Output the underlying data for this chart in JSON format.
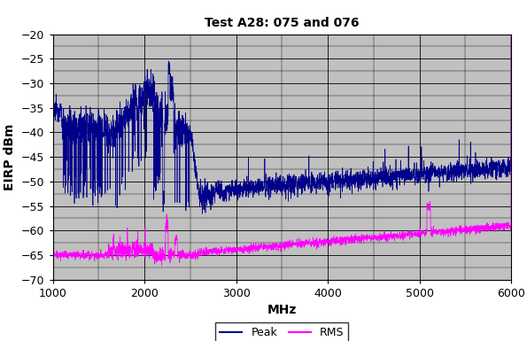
{
  "title": "Test A28: 075 and 076",
  "xlabel": "MHz",
  "ylabel": "EIRP dBm",
  "xlim": [
    1000,
    6000
  ],
  "ylim": [
    -70,
    -20
  ],
  "yticks": [
    -70,
    -65,
    -60,
    -55,
    -50,
    -45,
    -40,
    -35,
    -30,
    -25,
    -20
  ],
  "xticks": [
    1000,
    2000,
    3000,
    4000,
    5000,
    6000
  ],
  "bg_color": "#C0C0C0",
  "peak_color": "#00008B",
  "rms_color": "#FF00FF",
  "legend_labels": [
    "Peak",
    "RMS"
  ],
  "title_fontsize": 10,
  "label_fontsize": 10,
  "tick_fontsize": 9
}
